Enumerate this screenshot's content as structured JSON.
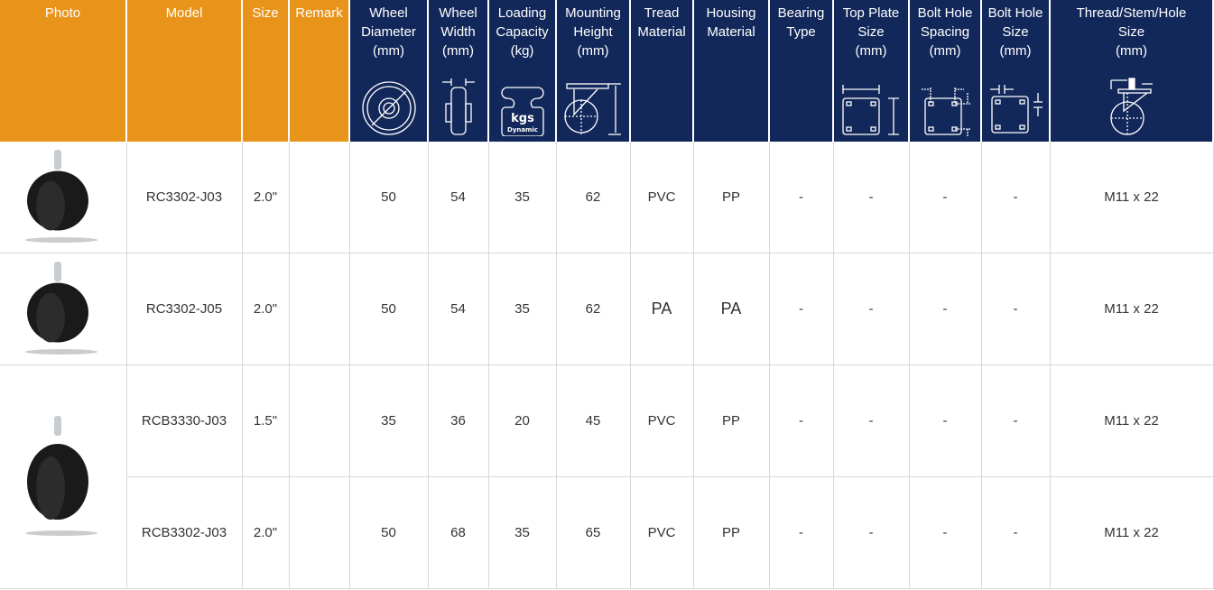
{
  "colors": {
    "header_orange": "#e8941a",
    "header_navy": "#13285a"
  },
  "headers": [
    "Photo",
    "Model",
    "Size",
    "Remark",
    "Wheel\nDiameter\n(mm)",
    "Wheel\nWidth\n(mm)",
    "Loading\nCapacity\n(kg)",
    "Mounting\nHeight\n(mm)",
    "Tread\nMaterial",
    "Housing\nMaterial",
    "Bearing\nType",
    "Top Plate\nSize\n(mm)",
    "Bolt Hole\nSpacing\n(mm)",
    "Bolt Hole\nSize\n(mm)",
    "Thread/Stem/Hole\nSize\n(mm)"
  ],
  "icons": {
    "kgs": "kgs",
    "dynamic": "Dynamic"
  },
  "rows": [
    {
      "model": "RC3302-J03",
      "size": "2.0\"",
      "remark": "",
      "diameter": "50",
      "width": "54",
      "load": "35",
      "height": "62",
      "tread": "PVC",
      "housing": "PP",
      "bearing": "-",
      "plate": "-",
      "spacing": "-",
      "hole": "-",
      "thread": "M11 x 22"
    },
    {
      "model": "RC3302-J05",
      "size": "2.0\"",
      "remark": "",
      "diameter": "50",
      "width": "54",
      "load": "35",
      "height": "62",
      "tread": "PA",
      "housing": "PA",
      "bearing": "-",
      "plate": "-",
      "spacing": "-",
      "hole": "-",
      "thread": "M11 x 22"
    },
    {
      "model": "RCB3330-J03",
      "size": "1.5\"",
      "remark": "",
      "diameter": "35",
      "width": "36",
      "load": "20",
      "height": "45",
      "tread": "PVC",
      "housing": "PP",
      "bearing": "-",
      "plate": "-",
      "spacing": "-",
      "hole": "-",
      "thread": "M11 x 22"
    },
    {
      "model": "RCB3302-J03",
      "size": "2.0\"",
      "remark": "",
      "diameter": "50",
      "width": "68",
      "load": "35",
      "height": "65",
      "tread": "PVC",
      "housing": "PP",
      "bearing": "-",
      "plate": "-",
      "spacing": "-",
      "hole": "-",
      "thread": "M11 x 22"
    }
  ]
}
